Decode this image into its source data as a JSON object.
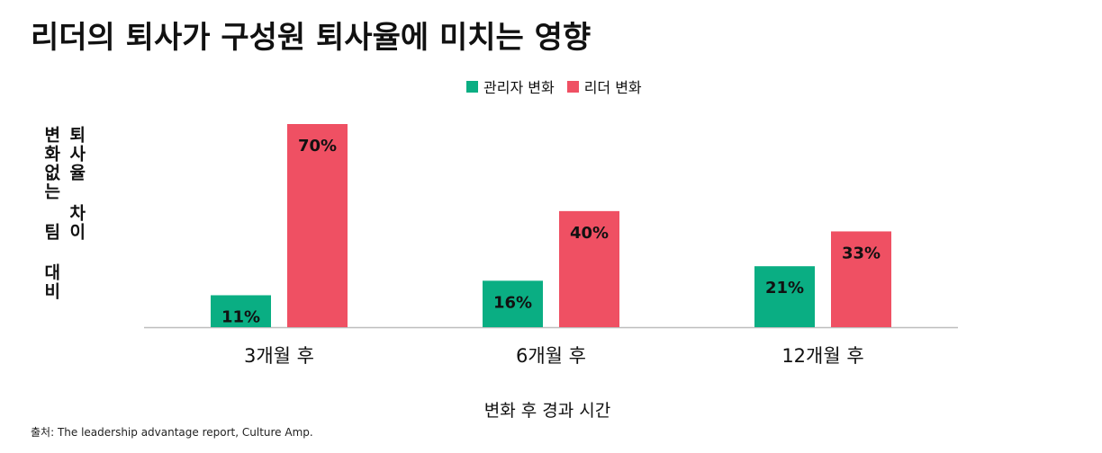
{
  "title": "리더의 퇴사가 구성원 퇴사율에 미치는 영향",
  "source": "출처: The leadership advantage report, Culture Amp.",
  "colors": {
    "manager": "#0aae83",
    "leader": "#ef5063",
    "axis": "#bdbdbd"
  },
  "chart_data": {
    "type": "bar",
    "title": "리더의 퇴사가 구성원 퇴사율에 미치는 영향",
    "categories": [
      "3개월 후",
      "6개월 후",
      "12개월 후"
    ],
    "series": [
      {
        "name": "관리자 변화",
        "values": [
          11,
          16,
          21
        ],
        "color": "#0aae83"
      },
      {
        "name": "리더 변화",
        "values": [
          70,
          40,
          33
        ],
        "color": "#ef5063"
      }
    ],
    "data_labels": [
      [
        "11%",
        "16%",
        "21%"
      ],
      [
        "70%",
        "40%",
        "33%"
      ]
    ],
    "xlabel": "변화 후 경과 시간",
    "ylabel_lines": [
      "변화없는 팀 대비",
      "퇴사율 차이"
    ],
    "ylim": [
      0,
      70
    ],
    "legend_position": "top-center",
    "grid": false
  }
}
